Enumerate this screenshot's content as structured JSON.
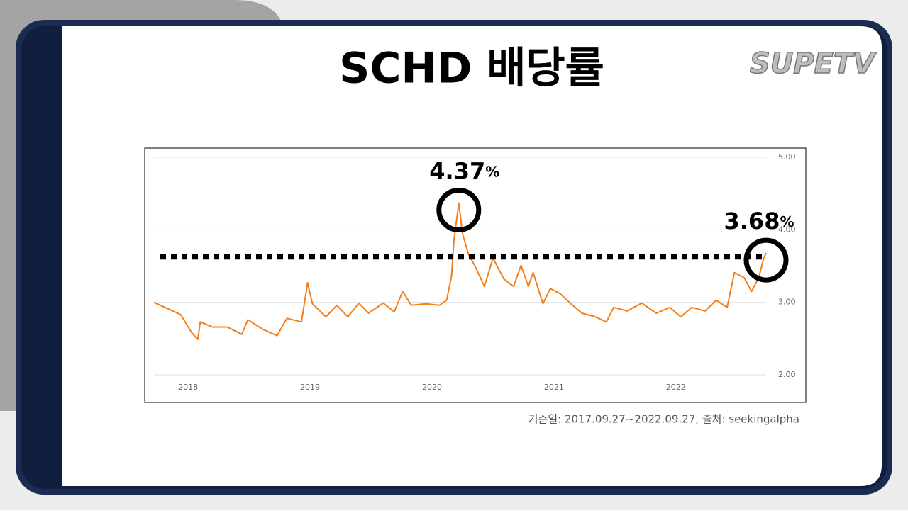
{
  "header": {
    "title": "SCHD 배당률",
    "logo": "SUPETV"
  },
  "chart_data": {
    "type": "line",
    "x": [
      2017.72,
      2017.85,
      2017.94,
      2018.03,
      2018.08,
      2018.1,
      2018.2,
      2018.32,
      2018.44,
      2018.49,
      2018.61,
      2018.73,
      2018.81,
      2018.93,
      2018.98,
      2019.02,
      2019.13,
      2019.22,
      2019.31,
      2019.4,
      2019.48,
      2019.6,
      2019.69,
      2019.76,
      2019.83,
      2019.95,
      2020.06,
      2020.12,
      2020.16,
      2020.18,
      2020.22,
      2020.25,
      2020.3,
      2020.35,
      2020.43,
      2020.5,
      2020.59,
      2020.67,
      2020.73,
      2020.79,
      2020.83,
      2020.91,
      2020.97,
      2021.05,
      2021.14,
      2021.23,
      2021.34,
      2021.43,
      2021.49,
      2021.6,
      2021.72,
      2021.84,
      2021.95,
      2022.04,
      2022.13,
      2022.24,
      2022.33,
      2022.42,
      2022.48,
      2022.56,
      2022.62,
      2022.68,
      2022.72,
      2022.74
    ],
    "series": [
      {
        "name": "SCHD",
        "color": "#f57f17",
        "values": [
          3.0,
          2.9,
          2.83,
          2.58,
          2.49,
          2.73,
          2.66,
          2.66,
          2.56,
          2.76,
          2.63,
          2.54,
          2.78,
          2.73,
          3.27,
          2.98,
          2.8,
          2.96,
          2.8,
          2.99,
          2.85,
          2.99,
          2.87,
          3.15,
          2.96,
          2.98,
          2.96,
          3.03,
          3.36,
          3.85,
          4.37,
          3.95,
          3.66,
          3.51,
          3.22,
          3.61,
          3.32,
          3.22,
          3.51,
          3.22,
          3.41,
          2.98,
          3.19,
          3.12,
          2.98,
          2.85,
          2.8,
          2.73,
          2.93,
          2.88,
          2.99,
          2.85,
          2.93,
          2.8,
          2.93,
          2.88,
          3.03,
          2.93,
          3.41,
          3.34,
          3.15,
          3.34,
          3.61,
          3.68
        ]
      }
    ],
    "xlim": [
      2017.72,
      2022.74
    ],
    "xticks": [
      2018,
      2019,
      2020,
      2021,
      2022
    ],
    "ylim": [
      2,
      5
    ],
    "yticks": [
      {
        "value": 2,
        "label": "2.00"
      },
      {
        "value": 3,
        "label": "3.00"
      },
      {
        "value": 4,
        "label": "4.00"
      },
      {
        "value": 5,
        "label": "5.00"
      }
    ],
    "grid": true,
    "reference_line": {
      "value": 3.63,
      "color": "#000000"
    },
    "annotations": [
      {
        "text": "4.37",
        "suffix": "%",
        "x": 2020.22,
        "y": 4.37
      },
      {
        "text": "3.68",
        "suffix": "%",
        "x": 2022.74,
        "y": 3.68
      }
    ]
  },
  "footer": {
    "source": "기준일: 2017.09.27~2022.09.27, 출처: seekingalpha"
  }
}
